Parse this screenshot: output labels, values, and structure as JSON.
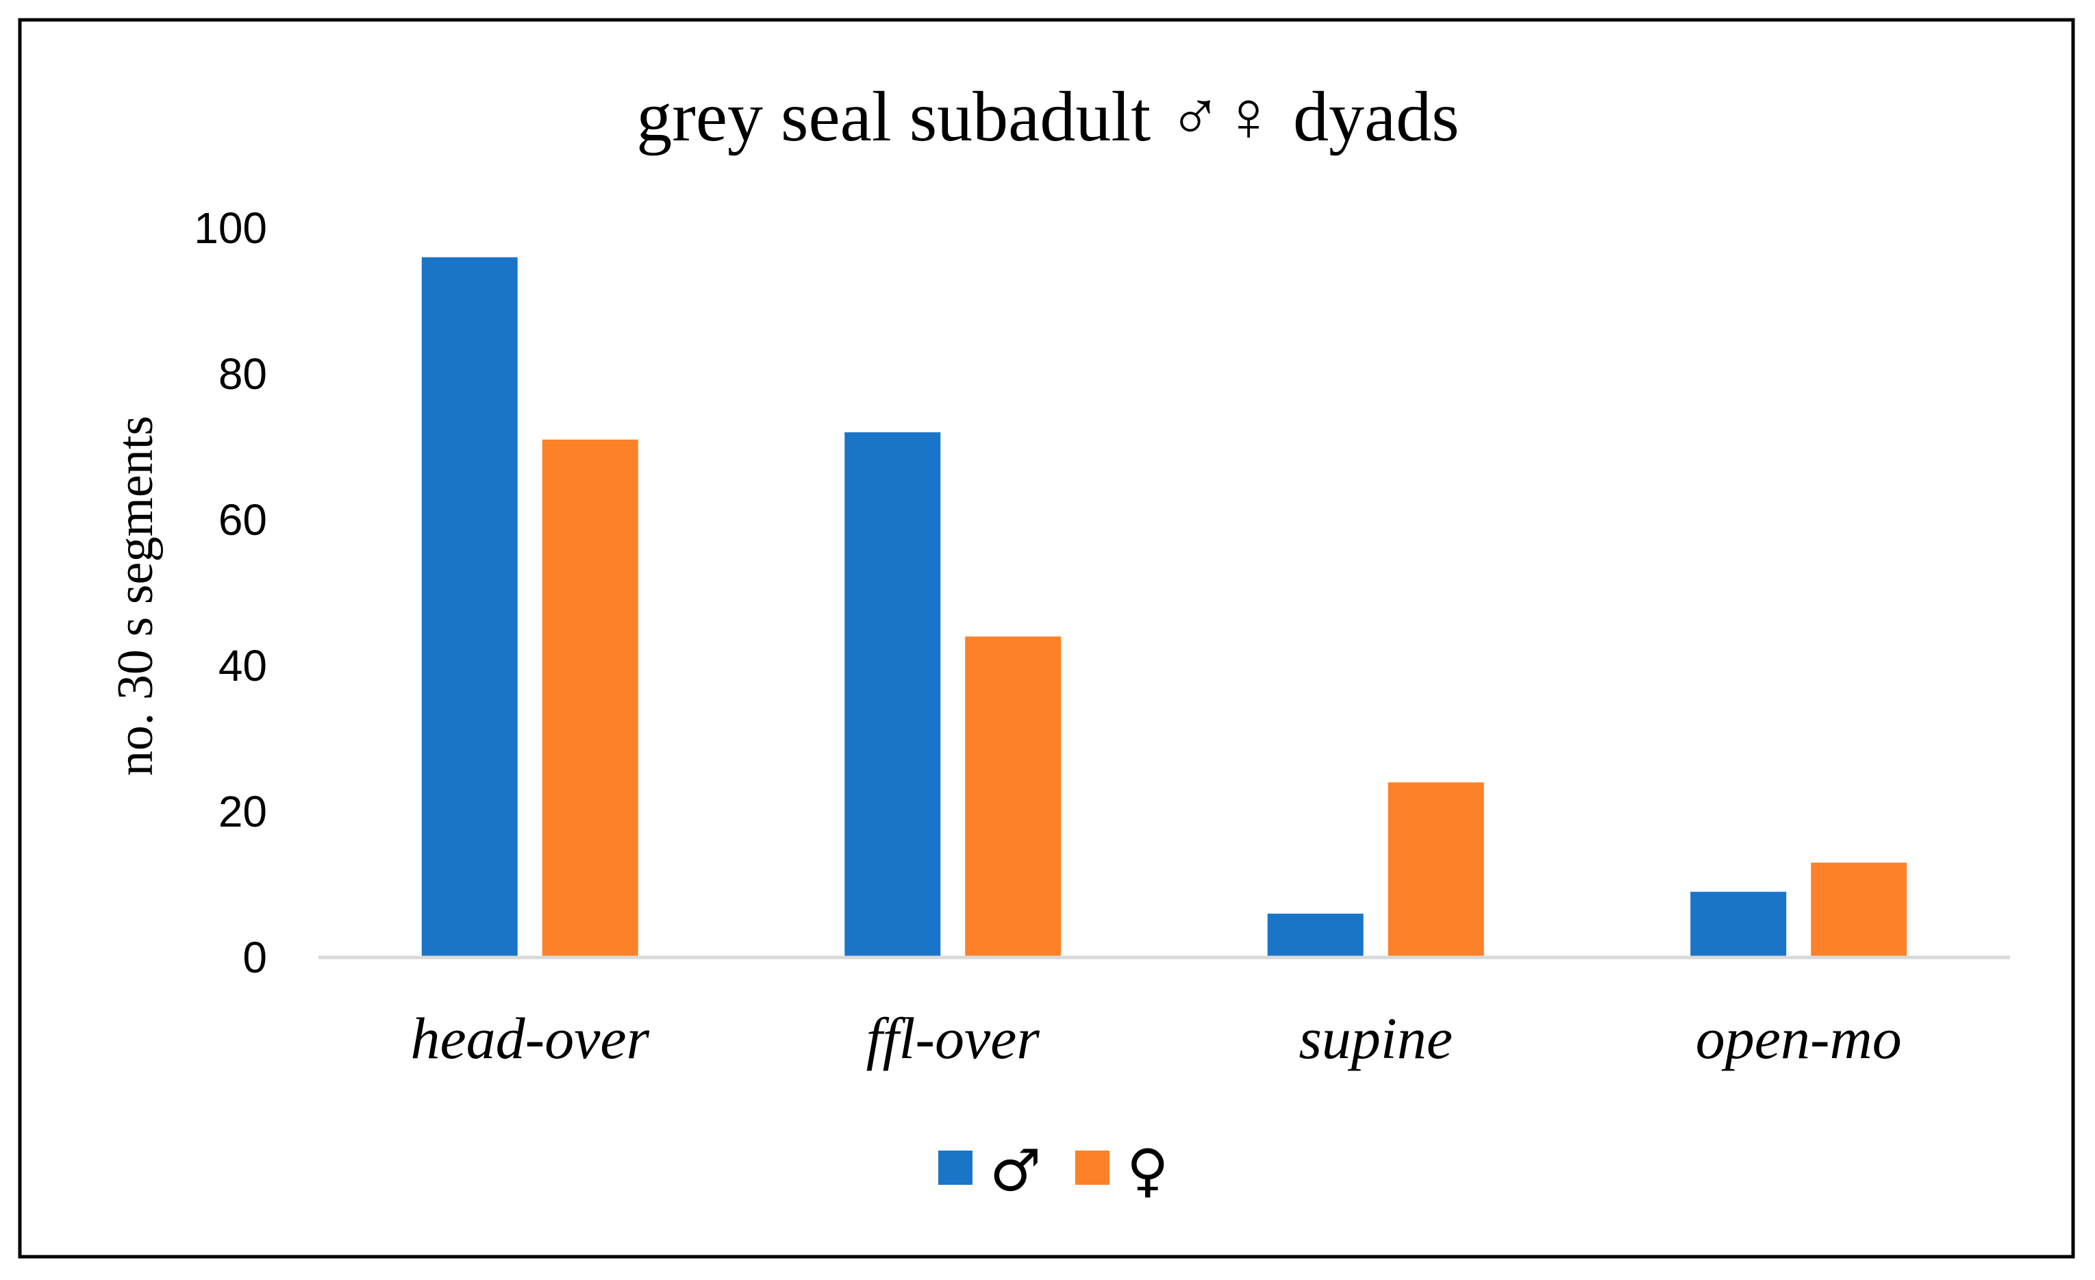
{
  "chart_data": {
    "type": "bar",
    "title": "grey seal subadult ♂♀ dyads",
    "xlabel": "",
    "ylabel": "no. 30 s segments",
    "ylim": [
      0,
      100
    ],
    "yticks": [
      0,
      20,
      40,
      60,
      80,
      100
    ],
    "categories": [
      "head-over",
      "ffl-over",
      "supine",
      "open-mo"
    ],
    "series": [
      {
        "name": "♂",
        "color": "#1a75c8",
        "values": [
          96,
          72,
          6,
          9
        ]
      },
      {
        "name": "♀",
        "color": "#fd8128",
        "values": [
          71,
          44,
          24,
          13
        ]
      }
    ],
    "grid": false,
    "legend_position": "bottom-center",
    "frame_color": "#000000",
    "axis_color": "#d9d9d9"
  }
}
